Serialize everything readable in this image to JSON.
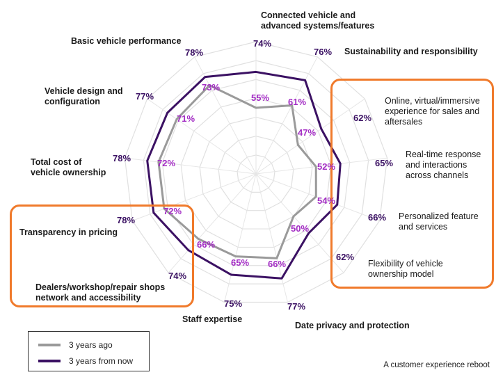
{
  "chart_data": {
    "type": "radar",
    "categories": [
      "Connected vehicle and\nadvanced systems/features",
      "Sustainability and responsibility",
      "Online, virtual/immersive\nexperience for sales and\naftersales",
      "Real-time response\nand interactions\nacross channels",
      "Personalized feature\nand services",
      "Flexibility of vehicle\nownership model",
      "Date privacy and protection",
      "Staff expertise",
      "Dealers/workshop/repair shops\nnetwork and accessibility",
      "Transparency in pricing",
      "Total cost of\nvehicle ownership",
      "Vehicle design and\nconfiguration",
      "Basic vehicle performance"
    ],
    "series": [
      {
        "name": "3 years ago",
        "color": "#9a9a9a",
        "values": [
          55,
          61,
          47,
          52,
          54,
          50,
          66,
          65,
          66,
          72,
          72,
          71,
          73
        ]
      },
      {
        "name": "3 years from now",
        "color": "#3b1163",
        "values": [
          74,
          76,
          62,
          65,
          66,
          62,
          77,
          75,
          74,
          78,
          78,
          77,
          78
        ]
      }
    ],
    "value_format": "{v}%",
    "grid": true,
    "legend_position": "bottom-left",
    "highlighted_categories": [
      "Online, virtual/immersive experience for sales and aftersales",
      "Real-time response and interactions across channels",
      "Personalized feature and services",
      "Flexibility of vehicle ownership model",
      "Transparency in pricing",
      "Dealers/workshop/repair shops network and accessibility"
    ],
    "highlight_color": "#f07a2b"
  },
  "legend": {
    "past_label": "3 years ago",
    "future_label": "3 years from now"
  },
  "source_text": "A customer experience reboot"
}
